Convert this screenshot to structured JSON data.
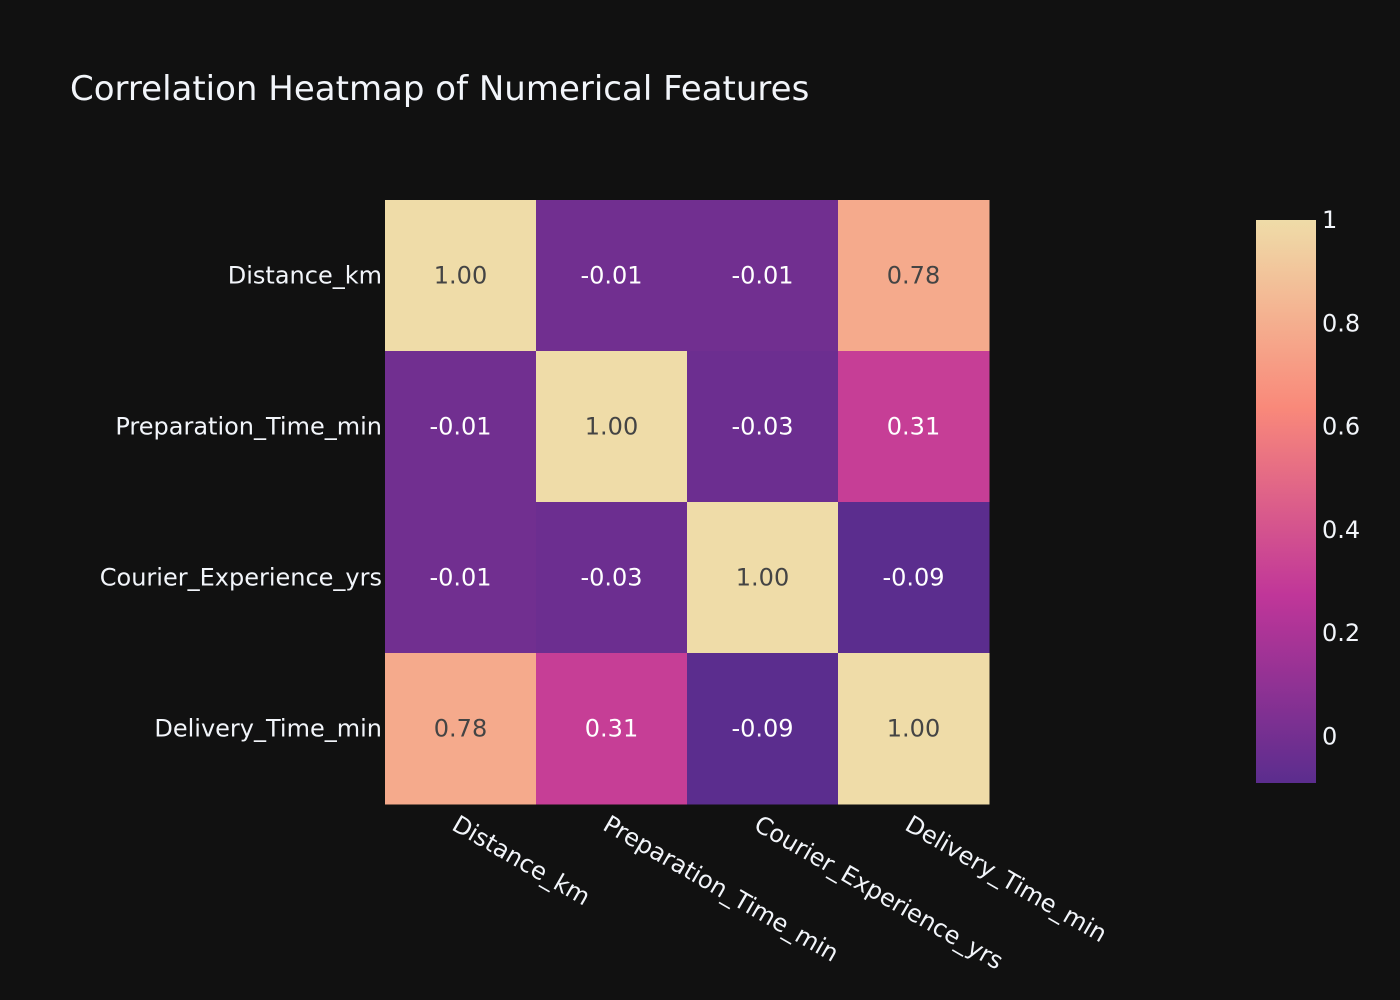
{
  "chart_data": {
    "type": "heatmap",
    "title": "Correlation Heatmap of Numerical Features",
    "x_categories": [
      "Distance_km",
      "Preparation_Time_min",
      "Courier_Experience_yrs",
      "Delivery_Time_min"
    ],
    "y_categories": [
      "Distance_km",
      "Preparation_Time_min",
      "Courier_Experience_yrs",
      "Delivery_Time_min"
    ],
    "values": [
      [
        1.0,
        -0.01,
        -0.01,
        0.78
      ],
      [
        -0.01,
        1.0,
        -0.03,
        0.31
      ],
      [
        -0.01,
        -0.03,
        1.0,
        -0.09
      ],
      [
        0.78,
        0.31,
        -0.09,
        1.0
      ]
    ],
    "cell_labels": [
      [
        "1.00",
        "-0.01",
        "-0.01",
        "0.78"
      ],
      [
        "-0.01",
        "1.00",
        "-0.03",
        "0.31"
      ],
      [
        "-0.01",
        "-0.03",
        "1.00",
        "-0.09"
      ],
      [
        "0.78",
        "0.31",
        "-0.09",
        "1.00"
      ]
    ],
    "zmin": -0.09,
    "zmax": 1.0,
    "colorscale": "magenta-sunset",
    "colorscale_stops": [
      "#5b2d8e",
      "#c03699",
      "#f9897a",
      "#efdca8"
    ],
    "colorbar": {
      "ticks": [
        1,
        0.8,
        0.6,
        0.4,
        0.2,
        0
      ],
      "tick_labels": [
        "1",
        "0.8",
        "0.6",
        "0.4",
        "0.2",
        "0"
      ]
    },
    "background_color": "#111111",
    "text_color": "#f2f5fa"
  }
}
